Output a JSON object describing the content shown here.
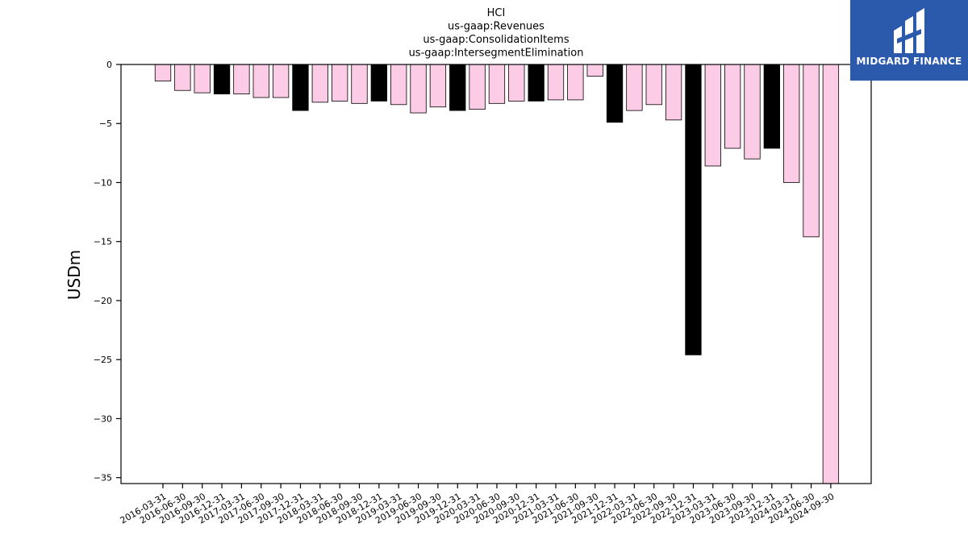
{
  "chart_data": {
    "type": "bar",
    "title_lines": [
      "HCI",
      "us-gaap:Revenues",
      "us-gaap:ConsolidationItems",
      "us-gaap:IntersegmentElimination"
    ],
    "xlabel": "",
    "ylabel": "USDm",
    "ylim": [
      -35.5,
      0
    ],
    "yticks": [
      0,
      -5,
      -10,
      -15,
      -20,
      -25,
      -30,
      -35
    ],
    "ytick_labels": [
      "0",
      "−5",
      "−10",
      "−15",
      "−20",
      "−25",
      "−30",
      "−35"
    ],
    "grid": false,
    "categories": [
      "2016-03-31",
      "2016-06-30",
      "2016-09-30",
      "2016-12-31",
      "2017-03-31",
      "2017-06-30",
      "2017-09-30",
      "2017-12-31",
      "2018-03-31",
      "2018-06-30",
      "2018-09-30",
      "2018-12-31",
      "2019-03-31",
      "2019-06-30",
      "2019-09-30",
      "2019-12-31",
      "2020-03-31",
      "2020-06-30",
      "2020-09-30",
      "2020-12-31",
      "2021-03-31",
      "2021-06-30",
      "2021-09-30",
      "2021-12-31",
      "2022-03-31",
      "2022-06-30",
      "2022-09-30",
      "2022-12-31",
      "2023-03-31",
      "2023-06-30",
      "2023-09-30",
      "2023-12-31",
      "2024-03-31",
      "2024-06-30",
      "2024-09-30"
    ],
    "values": [
      -1.4,
      -2.2,
      -2.4,
      -2.5,
      -2.5,
      -2.8,
      -2.8,
      -3.9,
      -3.2,
      -3.1,
      -3.3,
      -3.1,
      -3.4,
      -4.1,
      -3.6,
      -3.9,
      -3.8,
      -3.3,
      -3.1,
      -3.1,
      -3.0,
      -3.0,
      -1.0,
      -4.9,
      -3.9,
      -3.4,
      -4.7,
      -24.6,
      -8.6,
      -7.1,
      -8.0,
      -7.1,
      -10.0,
      -14.6,
      -35.5
    ],
    "bar_kinds": [
      "q",
      "q",
      "q",
      "y",
      "q",
      "q",
      "q",
      "y",
      "q",
      "q",
      "q",
      "y",
      "q",
      "q",
      "q",
      "y",
      "q",
      "q",
      "q",
      "y",
      "q",
      "q",
      "q",
      "y",
      "q",
      "q",
      "q",
      "y",
      "q",
      "q",
      "q",
      "y",
      "q",
      "q",
      "q"
    ],
    "colors": {
      "quarter": "#fccce6",
      "year_end": "#000000",
      "edge": "#000000"
    }
  },
  "logo": {
    "text": "MIDGARD FINANCE",
    "color": "#2b5aad"
  }
}
